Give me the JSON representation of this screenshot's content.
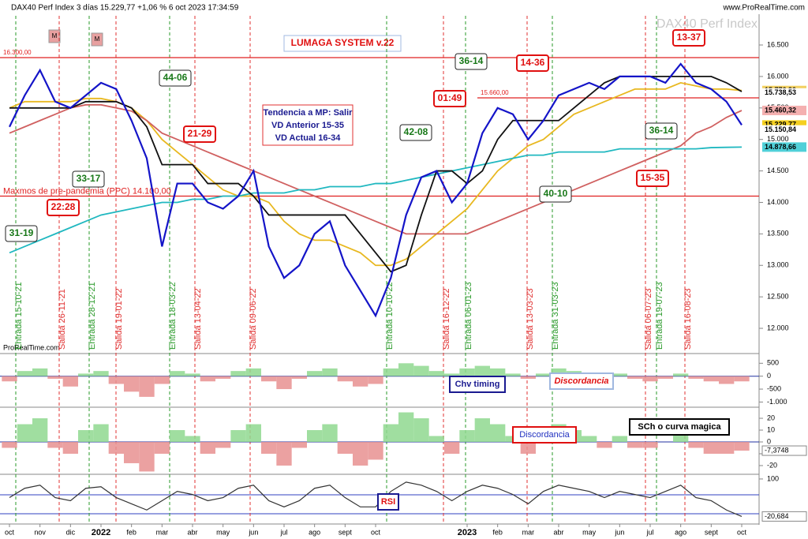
{
  "header": {
    "title": "DAX40 Perf Index 3 días 15.229,77 +1,06 % 6 oct 2023 17:34:59",
    "site": "www.ProRealTime.com",
    "watermark": "DAX40 Perf Index",
    "logo": "ProRealTime.com",
    "markers": [
      "M",
      "M"
    ]
  },
  "chart_data": [
    {
      "type": "line",
      "title": "LUMAGA SYSTEM v.22",
      "categories": [
        "oct",
        null,
        "nov",
        null,
        "dic",
        null,
        "2022",
        null,
        "feb",
        null,
        "mar",
        null,
        "abr",
        null,
        "may",
        null,
        "jun",
        null,
        "jul",
        null,
        "ago",
        null,
        "sept",
        null,
        "oct",
        null,
        null,
        null,
        null,
        null,
        "2023",
        null,
        "feb",
        null,
        "mar",
        null,
        "abr",
        null,
        "may",
        null,
        "jun",
        null,
        "jul",
        null,
        "ago",
        null,
        "sept",
        null,
        "oct"
      ],
      "series": [
        {
          "color": "#e8b820",
          "values": [
            15500,
            15600,
            15600,
            15600,
            15600,
            15650,
            15650,
            15600,
            15500,
            15300,
            15000,
            14800,
            14600,
            14400,
            14200,
            14100,
            14100,
            14000,
            13700,
            13500,
            13400,
            13400,
            13300,
            13200,
            13000,
            13000,
            13100,
            13300,
            13500,
            13700,
            13900,
            14200,
            14500,
            14700,
            14900,
            15000,
            15200,
            15400,
            15500,
            15600,
            15700,
            15800,
            15800,
            15800,
            15900,
            15850,
            15800,
            15800,
            15777
          ]
        },
        {
          "color": "#d06060",
          "values": [
            15100,
            15200,
            15300,
            15400,
            15500,
            15550,
            15550,
            15500,
            15450,
            15300,
            15100,
            15000,
            14900,
            14800,
            14700,
            14600,
            14500,
            14400,
            14300,
            14200,
            14100,
            14000,
            13900,
            13800,
            13700,
            13600,
            13500,
            13500,
            13500,
            13500,
            13500,
            13600,
            13700,
            13800,
            13900,
            14000,
            14100,
            14200,
            14300,
            14400,
            14500,
            14600,
            14700,
            14800,
            14900,
            15100,
            15200,
            15350,
            15460
          ]
        },
        {
          "color": "#20b8c0",
          "values": [
            13200,
            13300,
            13400,
            13500,
            13600,
            13700,
            13800,
            13850,
            13900,
            13950,
            14000,
            14000,
            14050,
            14050,
            14100,
            14100,
            14150,
            14150,
            14150,
            14200,
            14200,
            14250,
            14250,
            14250,
            14300,
            14300,
            14350,
            14400,
            14450,
            14500,
            14550,
            14600,
            14650,
            14700,
            14750,
            14750,
            14800,
            14800,
            14800,
            14800,
            14850,
            14850,
            14850,
            14850,
            14850,
            14850,
            14870,
            14875,
            14879
          ]
        },
        {
          "color": "#111111",
          "values": [
            15500,
            15500,
            15500,
            15500,
            15500,
            15600,
            15600,
            15600,
            15500,
            15200,
            14600,
            14600,
            14600,
            14300,
            14300,
            14300,
            14100,
            13800,
            13800,
            13800,
            13800,
            13800,
            13800,
            13500,
            13200,
            12900,
            13000,
            13800,
            14500,
            14500,
            14300,
            14500,
            15000,
            15300,
            15300,
            15300,
            15300,
            15500,
            15700,
            15900,
            16000,
            16000,
            16000,
            16000,
            16000,
            16000,
            16000,
            15900,
            15760
          ]
        },
        {
          "color": "#1414c8",
          "values": [
            15200,
            15700,
            16100,
            15600,
            15500,
            15700,
            15900,
            15800,
            15300,
            14700,
            13300,
            14300,
            14300,
            14000,
            13900,
            14100,
            14500,
            13300,
            12800,
            13000,
            13500,
            13700,
            13000,
            12600,
            12200,
            12800,
            13800,
            14400,
            14500,
            14000,
            14300,
            15100,
            15500,
            15400,
            15000,
            15300,
            15700,
            15800,
            15900,
            15800,
            16000,
            16000,
            16000,
            15900,
            16200,
            15900,
            15800,
            15600,
            15230
          ]
        }
      ],
      "ylim": [
        11612,
        16964
      ],
      "yticks": [
        {
          "value": 12000,
          "label": "12.000"
        },
        {
          "value": 12500,
          "label": "12.500"
        },
        {
          "value": 13000,
          "label": "13.000"
        },
        {
          "value": 13500,
          "label": "13.500"
        },
        {
          "value": 14000,
          "label": "14.000"
        },
        {
          "value": 14500,
          "label": "14.500"
        },
        {
          "value": 15000,
          "label": "15.000"
        },
        {
          "value": 15500,
          "label": "15.500"
        },
        {
          "value": 16000,
          "label": "16.000"
        },
        {
          "value": 16500,
          "label": "16.500"
        }
      ],
      "right_labels": [
        {
          "value": 15776.9,
          "label": "15.776,90",
          "color": "#f2d060"
        },
        {
          "value": 15738.53,
          "label": "15.738,53",
          "color": "#ffffff"
        },
        {
          "value": 15460.32,
          "label": "15.460,32",
          "color": "#f4b0b0"
        },
        {
          "value": 15229.77,
          "label": "15.229,77",
          "color": "#f5d020"
        },
        {
          "value": 15150.84,
          "label": "15.150,84",
          "color": "#ffffff"
        },
        {
          "value": 14878.66,
          "label": "14.878,66",
          "color": "#50d0d8"
        }
      ],
      "hlines": [
        {
          "value": 16300,
          "label": "16.300,00"
        },
        {
          "value": 15660,
          "label": "15.660,00"
        },
        {
          "value": 14100,
          "label": "Maxmos de pre-pandemia (PPC) 14.100,00"
        }
      ],
      "vlines": [
        {
          "label": "Entrada 15-10-21",
          "color": "green"
        },
        {
          "label": "Salida 26-11-21",
          "color": "red"
        },
        {
          "label": "Entrada 28-12-21",
          "color": "green"
        },
        {
          "label": "Salida 19-01-22",
          "color": "red"
        },
        {
          "label": "Entrada 18-03-22",
          "color": "green"
        },
        {
          "label": "Salida 13-04-22",
          "color": "red"
        },
        {
          "label": "Salida 09-06-22",
          "color": "red"
        },
        {
          "label": "Entrada 10-10-22",
          "color": "green"
        },
        {
          "label": "Salida 16-12-22",
          "color": "red"
        },
        {
          "label": "Entrada 06-01-23",
          "color": "green"
        },
        {
          "label": "Salida 13-03-23",
          "color": "red"
        },
        {
          "label": "Entrada 31-03-23",
          "color": "green"
        },
        {
          "label": "Salida 06-07-23",
          "color": "red"
        },
        {
          "label": "Entrada 19-07-23",
          "color": "green"
        },
        {
          "label": "Salida 16-08-23",
          "color": "red"
        }
      ],
      "boxes": [
        {
          "label": "44-06",
          "color": "green"
        },
        {
          "label": "21-29",
          "color": "red"
        },
        {
          "label": "33-17",
          "color": "green"
        },
        {
          "label": "22:28",
          "color": "red"
        },
        {
          "label": "31-19",
          "color": "green"
        },
        {
          "label": "36-14",
          "color": "green"
        },
        {
          "label": "14-36",
          "color": "red"
        },
        {
          "label": "01:49",
          "color": "red"
        },
        {
          "label": "42-08",
          "color": "green"
        },
        {
          "label": "36-14",
          "color": "green"
        },
        {
          "label": "40-10",
          "color": "green"
        },
        {
          "label": "13-37",
          "color": "red"
        },
        {
          "label": "15-35",
          "color": "red"
        }
      ],
      "note": [
        "Tendencia a MP: Salir",
        "VD Anterior 15-35",
        "VD Actual 16-34"
      ]
    },
    {
      "type": "bar",
      "annotations": [
        "Chv timing",
        "Discordancia"
      ],
      "ylim": [
        -1170,
        815
      ],
      "yticks": [
        500,
        0,
        -500,
        {
          "value": -1000,
          "label": "-1.000"
        }
      ],
      "values": [
        -200,
        200,
        300,
        -100,
        -400,
        100,
        200,
        -300,
        -600,
        -800,
        -300,
        200,
        100,
        -200,
        -100,
        200,
        300,
        -200,
        -500,
        -100,
        200,
        300,
        -200,
        -400,
        -300,
        300,
        500,
        400,
        200,
        100,
        300,
        400,
        300,
        100,
        -100,
        100,
        300,
        200,
        100,
        0,
        100,
        -100,
        -200,
        -100,
        100,
        -100,
        -200,
        -300,
        -200
      ]
    },
    {
      "type": "bar",
      "annotations": [
        "Discordancia",
        "SCh o curva magica"
      ],
      "ylim": [
        -26.7,
        28.7
      ],
      "yticks": [
        20,
        10,
        0,
        -10,
        -20
      ],
      "right_label": {
        "value": -7.3748,
        "label": "-7,3748"
      },
      "values": [
        -5,
        15,
        20,
        -5,
        -10,
        10,
        15,
        -10,
        -18,
        -25,
        -10,
        10,
        5,
        -10,
        -5,
        10,
        15,
        -10,
        -20,
        -5,
        10,
        15,
        -10,
        -20,
        -15,
        15,
        25,
        20,
        5,
        -10,
        10,
        20,
        15,
        5,
        -10,
        5,
        15,
        10,
        5,
        -5,
        5,
        -5,
        -5,
        0,
        8,
        -5,
        -10,
        -10,
        -7.3748
      ]
    },
    {
      "type": "line",
      "annotations": [
        "RSI"
      ],
      "ylim": [
        -40,
        110
      ],
      "yticks": [
        100
      ],
      "right_label": {
        "value": -20.684,
        "label": "-20,684"
      },
      "color": "#333333",
      "values": [
        40,
        70,
        80,
        40,
        30,
        70,
        75,
        40,
        20,
        0,
        30,
        60,
        50,
        30,
        40,
        70,
        80,
        30,
        10,
        30,
        70,
        80,
        40,
        10,
        10,
        60,
        90,
        80,
        60,
        30,
        60,
        80,
        70,
        50,
        20,
        60,
        80,
        70,
        60,
        40,
        60,
        50,
        40,
        60,
        80,
        40,
        30,
        0,
        -20.684
      ]
    }
  ]
}
